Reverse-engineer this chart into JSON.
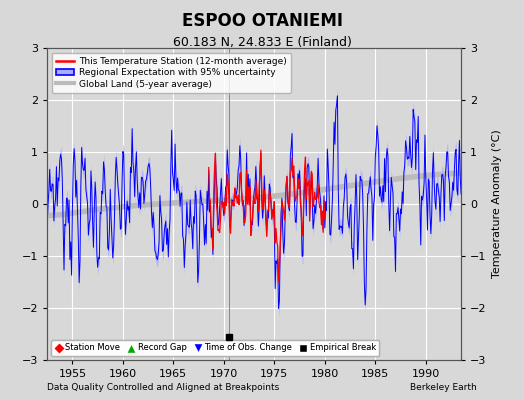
{
  "title": "ESPOO OTANIEMI",
  "subtitle": "60.183 N, 24.833 E (Finland)",
  "ylabel": "Temperature Anomaly (°C)",
  "xlabel_left": "Data Quality Controlled and Aligned at Breakpoints",
  "xlabel_right": "Berkeley Earth",
  "ylim": [
    -3,
    3
  ],
  "xlim": [
    1952.5,
    1993.5
  ],
  "xticks": [
    1955,
    1960,
    1965,
    1970,
    1975,
    1980,
    1985,
    1990
  ],
  "yticks": [
    -3,
    -2,
    -1,
    0,
    1,
    2,
    3
  ],
  "bg_color": "#d8d8d8",
  "plot_bg_color": "#d8d8d8",
  "grid_color": "#ffffff",
  "station_color": "#ff0000",
  "regional_color": "#0000ff",
  "regional_fill_color": "#aaaaff",
  "global_color": "#bbbbbb",
  "empirical_break_x": 1970.5,
  "empirical_break_y": -2.55,
  "vertical_line_x": 1970.5,
  "station_start_year": 1968.5,
  "station_end_year": 1980.5
}
